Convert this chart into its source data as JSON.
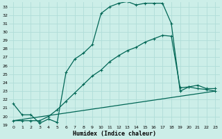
{
  "xlabel": "Humidex (Indice chaleur)",
  "bg_color": "#cceee8",
  "grid_color": "#b0ddd8",
  "line_color": "#006655",
  "xlim": [
    -0.5,
    23.5
  ],
  "ylim": [
    19,
    33.5
  ],
  "xtick_vals": [
    0,
    1,
    2,
    3,
    4,
    5,
    6,
    7,
    8,
    9,
    10,
    11,
    12,
    13,
    14,
    15,
    16,
    17,
    18,
    19,
    20,
    21,
    22,
    23
  ],
  "ytick_vals": [
    19,
    20,
    21,
    22,
    23,
    24,
    25,
    26,
    27,
    28,
    29,
    30,
    31,
    32,
    33
  ],
  "line1_x": [
    0,
    1,
    2,
    3,
    4,
    5,
    6,
    7,
    8,
    9,
    10,
    11,
    12,
    13,
    14,
    15,
    16,
    17,
    18,
    19,
    20,
    21,
    22,
    23
  ],
  "line1_y": [
    21.5,
    20.2,
    20.2,
    19.2,
    19.7,
    19.3,
    25.2,
    26.8,
    27.5,
    28.5,
    32.2,
    33.0,
    33.4,
    33.6,
    33.2,
    33.4,
    33.4,
    33.4,
    31.0,
    23.0,
    23.5,
    23.7,
    23.3,
    23.3
  ],
  "line2_x": [
    0,
    1,
    2,
    3,
    4,
    5,
    6,
    7,
    8,
    9,
    10,
    11,
    12,
    13,
    14,
    15,
    16,
    17,
    18,
    19,
    20,
    21,
    22,
    23
  ],
  "line2_y": [
    19.5,
    19.5,
    19.5,
    19.5,
    20.0,
    20.8,
    21.8,
    22.8,
    23.8,
    24.8,
    25.5,
    26.5,
    27.2,
    27.8,
    28.2,
    28.8,
    29.2,
    29.6,
    29.5,
    23.4,
    23.5,
    23.3,
    23.2,
    23.0
  ],
  "line3_x": [
    0,
    23
  ],
  "line3_y": [
    19.5,
    23.0
  ]
}
